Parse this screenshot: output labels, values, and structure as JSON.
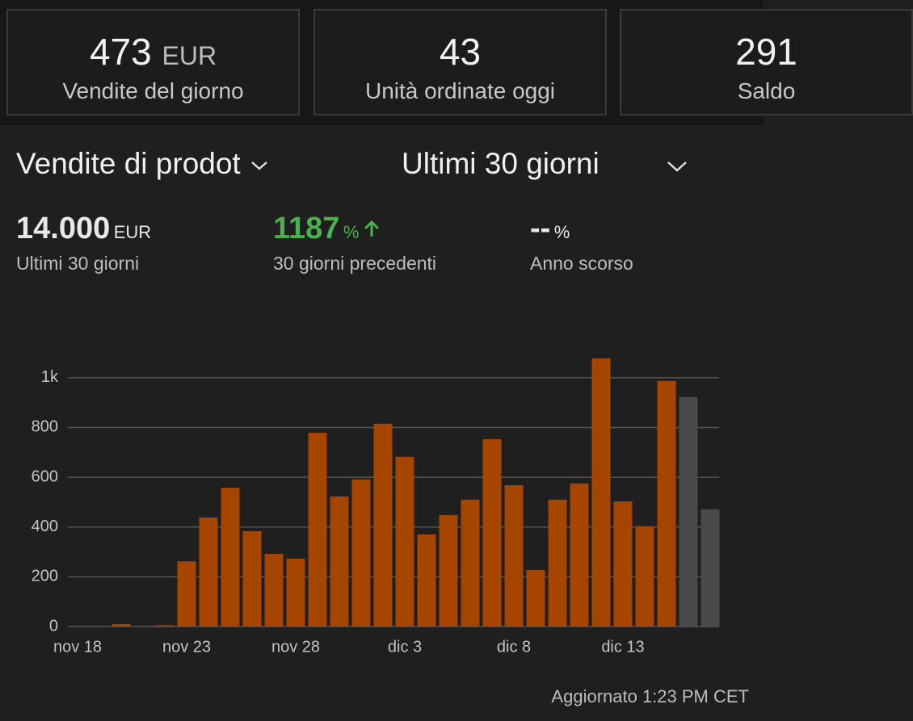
{
  "cards": [
    {
      "value": "473",
      "unit": "EUR",
      "label": "Vendite del giorno"
    },
    {
      "value": "43",
      "label": "Unità ordinate oggi"
    },
    {
      "value": "291",
      "label": "Saldo"
    }
  ],
  "selectors": {
    "metric": "Vendite di prodot",
    "period": "Ultimi 30 giorni"
  },
  "stats": [
    {
      "value": "14.000",
      "unit": "EUR",
      "label": "Ultimi 30 giorni"
    },
    {
      "value": "1187",
      "unit": "%",
      "label": "30 giorni precedenti"
    },
    {
      "value": "--",
      "unit": "%",
      "label": "Anno scorso"
    }
  ],
  "chart_data": {
    "type": "bar",
    "categories": [
      "nov 18",
      null,
      null,
      null,
      null,
      "nov 23",
      null,
      null,
      null,
      null,
      "nov 28",
      null,
      null,
      null,
      null,
      "dic 3",
      null,
      null,
      null,
      null,
      "dic 8",
      null,
      null,
      null,
      null,
      "dic 13",
      null,
      null,
      null,
      null
    ],
    "values": [
      0,
      0,
      10,
      0,
      5,
      262,
      438,
      558,
      383,
      292,
      273,
      779,
      523,
      591,
      815,
      682,
      370,
      448,
      510,
      753,
      568,
      227,
      510,
      575,
      1078,
      503,
      403,
      987,
      922,
      471
    ],
    "colors": [
      "#a64500",
      "#a64500",
      "#a64500",
      "#a64500",
      "#a64500",
      "#a64500",
      "#a64500",
      "#a64500",
      "#a64500",
      "#a64500",
      "#a64500",
      "#a64500",
      "#a64500",
      "#a64500",
      "#a64500",
      "#a64500",
      "#a64500",
      "#a64500",
      "#a64500",
      "#a64500",
      "#a64500",
      "#a64500",
      "#a64500",
      "#a64500",
      "#a64500",
      "#a64500",
      "#a64500",
      "#a64500",
      "#4a4a4a",
      "#4a4a4a"
    ],
    "ylim": [
      0,
      1100
    ],
    "yticks": [
      0,
      200,
      400,
      600,
      800,
      {
        "value": 1000,
        "label": "1k"
      }
    ],
    "grid": true
  },
  "footer": "Aggiornato 1:23 PM CET"
}
